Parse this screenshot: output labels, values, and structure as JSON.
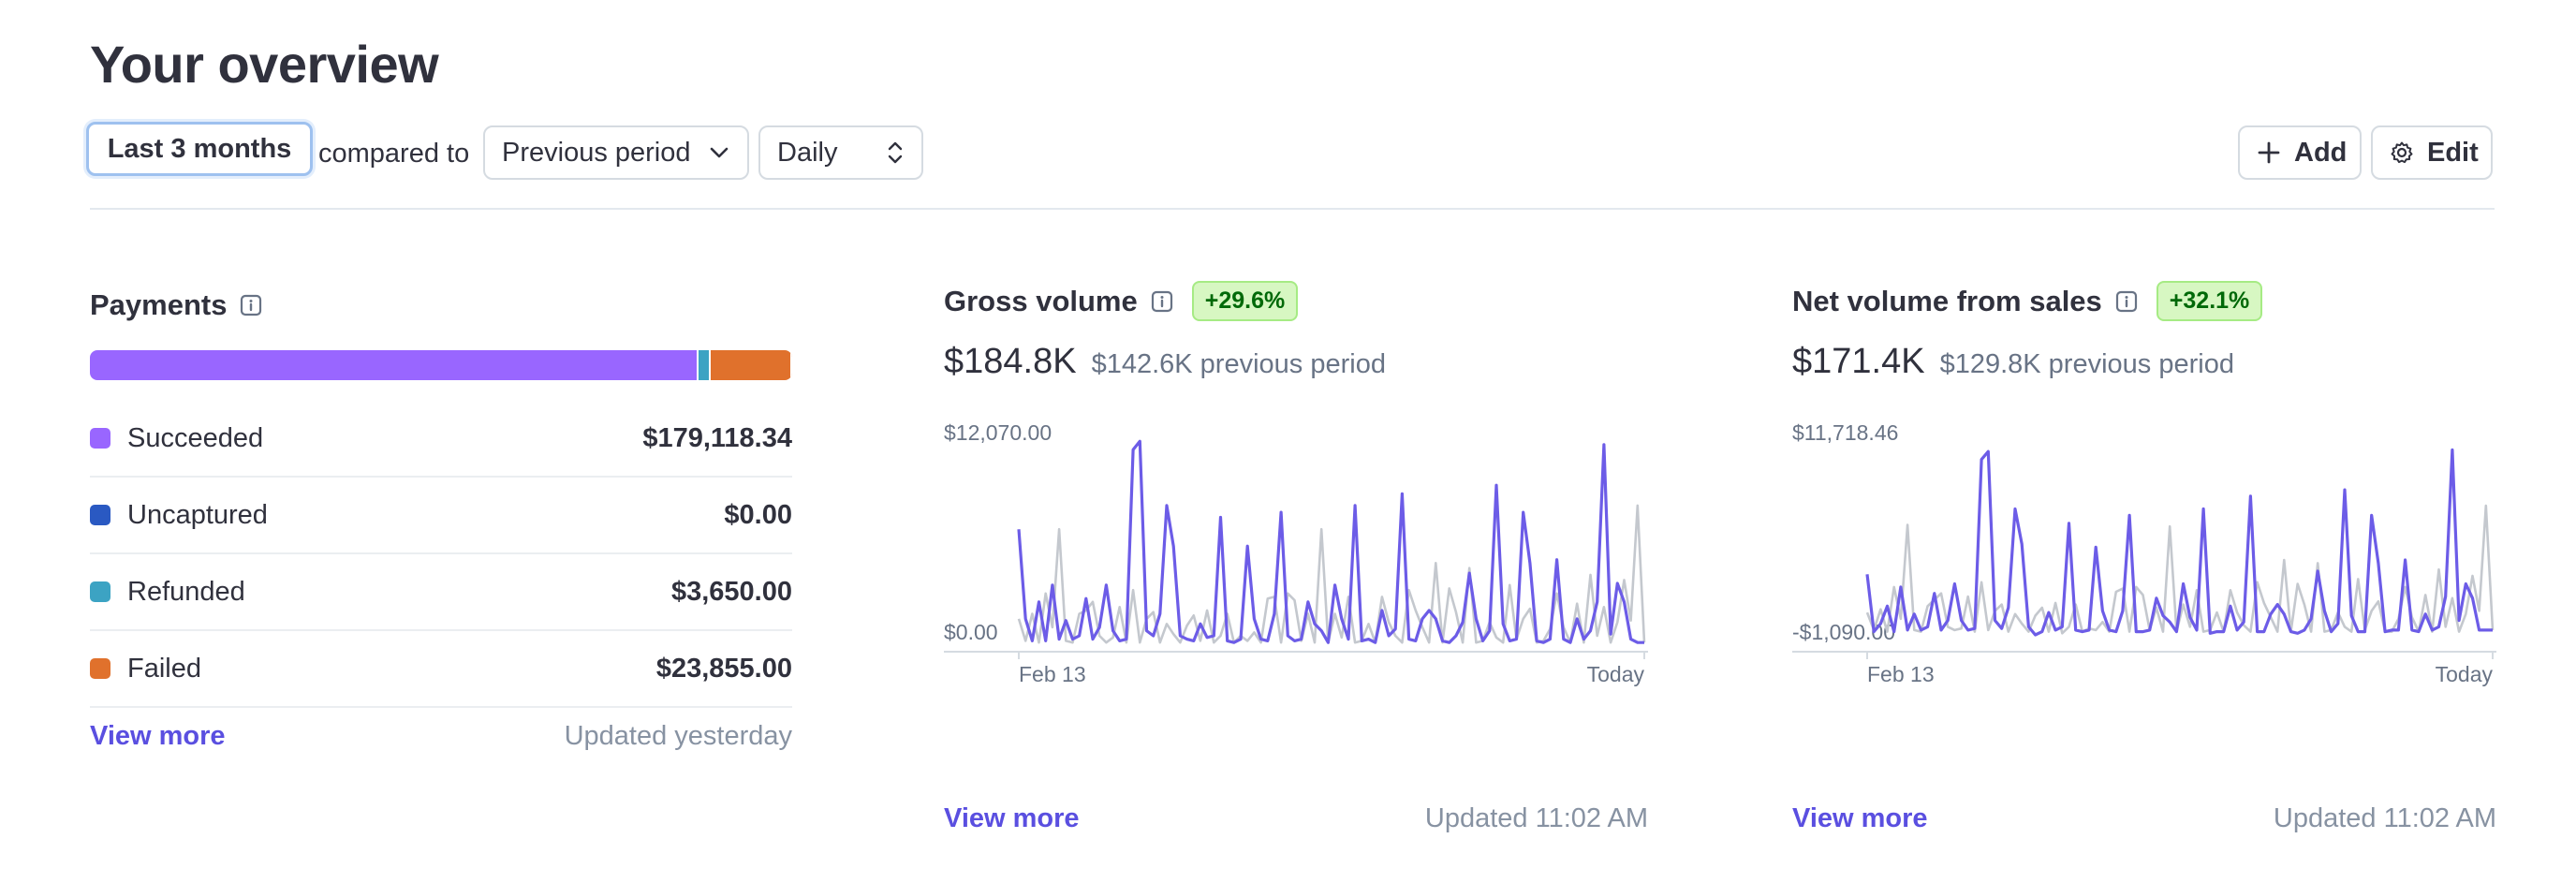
{
  "page": {
    "title": "Your overview"
  },
  "filters": {
    "range_label": "Last 3 months",
    "compared_to": "compared to",
    "comparison_label": "Previous period",
    "interval_label": "Daily",
    "add_label": "Add",
    "edit_label": "Edit"
  },
  "payments": {
    "title": "Payments",
    "items": [
      {
        "label": "Succeeded",
        "value": "$179,118.34",
        "color": "#9966ff",
        "amount": 179118.34
      },
      {
        "label": "Uncaptured",
        "value": "$0.00",
        "color": "#2a59c2",
        "amount": 0
      },
      {
        "label": "Refunded",
        "value": "$3,650.00",
        "color": "#3ca3c3",
        "amount": 3650.0
      },
      {
        "label": "Failed",
        "value": "$23,855.00",
        "color": "#e0712c",
        "amount": 23855.0
      }
    ],
    "view_more": "View more",
    "updated": "Updated yesterday"
  },
  "gross_volume": {
    "title": "Gross volume",
    "badge": "+29.6%",
    "current": "$184.8K",
    "previous": "$142.6K previous period",
    "view_more": "View more",
    "updated": "Updated 11:02 AM"
  },
  "net_volume": {
    "title": "Net volume from sales",
    "badge": "+32.1%",
    "current": "$171.4K",
    "previous": "$129.8K previous period",
    "view_more": "View more",
    "updated": "Updated 11:02 AM"
  },
  "colors": {
    "accent": "#5a4fe0",
    "current_series": "#6c5ce7",
    "previous_series": "#c4c8ce"
  },
  "chart_data": [
    {
      "type": "line",
      "title": "Gross volume",
      "x_tick_labels": [
        "Feb 13",
        "Today"
      ],
      "y_tick_labels": [
        "$12,070.00",
        "$0.00"
      ],
      "ylim": [
        0,
        12070
      ],
      "series": [
        {
          "values": [
            6800,
            1500,
            200,
            2500,
            200,
            3500,
            300,
            1400,
            300,
            500,
            2700,
            300,
            1000,
            3500,
            800,
            200,
            300,
            11500,
            12000,
            800,
            500,
            1800,
            8200,
            5800,
            500,
            300,
            200,
            1200,
            400,
            500,
            7500,
            200,
            100,
            300,
            5800,
            1500,
            300,
            200,
            1800,
            7800,
            500,
            200,
            300,
            2500,
            1200,
            800,
            100,
            3500,
            1500,
            300,
            8200,
            200,
            300,
            100,
            2000,
            500,
            900,
            8900,
            300,
            200,
            1500,
            2000,
            1500,
            200,
            100,
            500,
            1300,
            4200,
            1500,
            200,
            800,
            9400,
            1200,
            200,
            300,
            7800,
            4800,
            200,
            100,
            300,
            5000,
            300,
            100,
            1500,
            300,
            800,
            2500,
            11800,
            600,
            3600,
            2500,
            300,
            100,
            100
          ]
        },
        {
          "values": [
            1500,
            200,
            1800,
            100,
            3000,
            1000,
            6800,
            200,
            100,
            1800,
            2000,
            2500,
            500,
            100,
            400,
            2200,
            100,
            3200,
            100,
            1500,
            1900,
            100,
            1200,
            600,
            100,
            1100,
            1700,
            200,
            2000,
            100,
            500,
            1800,
            100,
            500,
            200,
            700,
            100,
            2700,
            2800,
            100,
            3000,
            2600,
            200,
            1800,
            100,
            6800,
            100,
            1800,
            400,
            2800,
            100,
            200,
            1200,
            100,
            2800,
            1300,
            500,
            100,
            3200,
            2000,
            1000,
            100,
            4800,
            100,
            3300,
            1900,
            100,
            4500,
            100,
            200,
            1300,
            400,
            100,
            3500,
            300,
            1500,
            2100,
            100,
            200,
            900,
            3000,
            1000,
            100,
            2400,
            100,
            4100,
            500,
            2200,
            100,
            1300,
            3800,
            1400,
            8200,
            100
          ]
        }
      ]
    },
    {
      "type": "line",
      "title": "Net volume from sales",
      "x_tick_labels": [
        "Feb 13",
        "Today"
      ],
      "y_tick_labels": [
        "$11,718.46",
        "-$1,090.00"
      ],
      "ylim": [
        -1090,
        11718.46
      ],
      "series": [
        {
          "values": [
            3300,
            -300,
            200,
            1300,
            -300,
            2500,
            -200,
            800,
            -200,
            0,
            2100,
            -200,
            400,
            2700,
            400,
            -200,
            -100,
            10500,
            11000,
            400,
            -100,
            1200,
            7400,
            5200,
            0,
            -500,
            -300,
            900,
            -200,
            0,
            6500,
            -200,
            -300,
            -200,
            5000,
            1000,
            -200,
            -300,
            1000,
            7000,
            -300,
            -300,
            -200,
            1800,
            700,
            300,
            -300,
            2700,
            600,
            -200,
            7400,
            -400,
            -300,
            -300,
            1300,
            -200,
            300,
            8200,
            -300,
            -300,
            800,
            1400,
            800,
            -300,
            -400,
            -200,
            500,
            3500,
            1000,
            -300,
            200,
            8600,
            700,
            -300,
            -300,
            7000,
            4000,
            -300,
            -200,
            -200,
            4200,
            -200,
            -300,
            800,
            -200,
            0,
            1900,
            11100,
            400,
            2700,
            1800,
            -200,
            -200,
            -200
          ]
        },
        {
          "values": [
            900,
            -200,
            1100,
            -300,
            2500,
            500,
            6400,
            -200,
            -300,
            1300,
            1700,
            2100,
            0,
            -200,
            -100,
            1900,
            -300,
            2800,
            -200,
            1000,
            1400,
            -300,
            800,
            200,
            -300,
            700,
            1200,
            -300,
            1500,
            -400,
            0,
            1400,
            -300,
            -100,
            -200,
            300,
            -300,
            2200,
            2400,
            -300,
            2500,
            2000,
            -200,
            1200,
            -300,
            6300,
            -300,
            1400,
            0,
            2300,
            -300,
            -200,
            900,
            -300,
            2300,
            900,
            100,
            -300,
            2800,
            1500,
            600,
            -300,
            4200,
            -300,
            2700,
            1400,
            -300,
            4000,
            -300,
            -200,
            900,
            0,
            -300,
            3000,
            -200,
            1000,
            1600,
            -300,
            -300,
            500,
            2500,
            600,
            -300,
            2000,
            -300,
            3600,
            0,
            1800,
            -300,
            800,
            3200,
            1000,
            7600,
            -200
          ]
        }
      ]
    }
  ]
}
